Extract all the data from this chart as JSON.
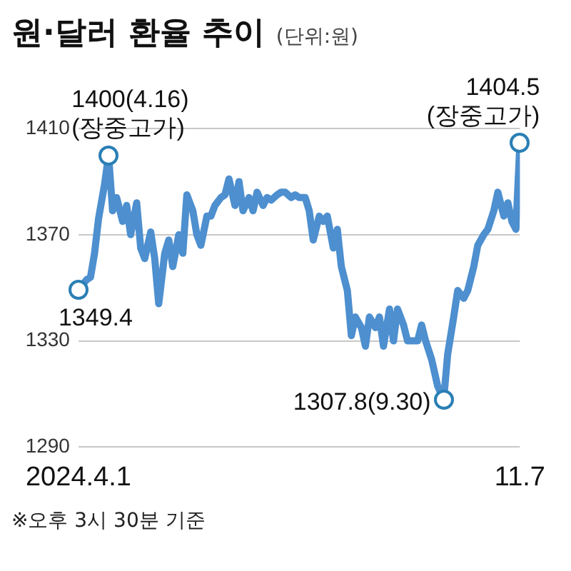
{
  "chart_data": {
    "type": "line",
    "title": "원·달러 환율 추이",
    "subtitle": "(단위:원)",
    "series": [
      {
        "color": "#4d8fcf",
        "x": [
          "2024-04-01",
          "2024-04-03",
          "2024-04-05",
          "2024-04-07",
          "2024-04-09",
          "2024-04-11",
          "2024-04-14",
          "2024-04-16",
          "2024-04-18",
          "2024-04-20",
          "2024-04-23",
          "2024-04-25",
          "2024-04-27",
          "2024-04-30",
          "2024-05-02",
          "2024-05-04",
          "2024-05-07",
          "2024-05-09",
          "2024-05-11",
          "2024-05-14",
          "2024-05-16",
          "2024-05-18",
          "2024-05-21",
          "2024-05-23",
          "2024-05-25",
          "2024-05-28",
          "2024-05-30",
          "2024-06-01",
          "2024-06-04",
          "2024-06-06",
          "2024-06-08",
          "2024-06-11",
          "2024-06-13",
          "2024-06-15",
          "2024-06-18",
          "2024-06-20",
          "2024-06-22",
          "2024-06-25",
          "2024-06-27",
          "2024-06-29",
          "2024-07-02",
          "2024-07-04",
          "2024-07-06",
          "2024-07-09",
          "2024-07-11",
          "2024-07-13",
          "2024-07-16",
          "2024-07-18",
          "2024-07-20",
          "2024-07-23",
          "2024-07-25",
          "2024-07-27",
          "2024-07-30",
          "2024-08-01",
          "2024-08-03",
          "2024-08-06",
          "2024-08-08",
          "2024-08-10",
          "2024-08-13",
          "2024-08-15",
          "2024-08-17",
          "2024-08-20",
          "2024-08-22",
          "2024-08-24",
          "2024-08-27",
          "2024-08-29",
          "2024-08-31",
          "2024-09-03",
          "2024-09-05",
          "2024-09-07",
          "2024-09-10",
          "2024-09-12",
          "2024-09-14",
          "2024-09-17",
          "2024-09-19",
          "2024-09-21",
          "2024-09-24",
          "2024-09-27",
          "2024-09-30",
          "2024-10-02",
          "2024-10-05",
          "2024-10-07",
          "2024-10-10",
          "2024-10-12",
          "2024-10-15",
          "2024-10-17",
          "2024-10-20",
          "2024-10-22",
          "2024-10-25",
          "2024-10-27",
          "2024-10-30",
          "2024-11-01",
          "2024-11-03",
          "2024-11-05",
          "2024-11-07"
        ],
        "values": [
          1349.4,
          1351,
          1353,
          1354,
          1363,
          1376,
          1389,
          1400,
          1379,
          1384,
          1375,
          1381,
          1370,
          1382,
          1365,
          1361,
          1371,
          1361,
          1344,
          1363,
          1368,
          1358,
          1370,
          1363,
          1385,
          1379,
          1370,
          1366,
          1377,
          1377,
          1381,
          1384,
          1385,
          1391,
          1381,
          1390,
          1379,
          1384,
          1379,
          1386,
          1381,
          1384,
          1383,
          1385,
          1386,
          1386,
          1384,
          1385,
          1384,
          1384,
          1379,
          1368,
          1377,
          1375,
          1377,
          1365,
          1372,
          1358,
          1349,
          1332,
          1339,
          1335,
          1328,
          1339,
          1335,
          1339,
          1328,
          1342,
          1330,
          1342,
          1336,
          1330,
          1330,
          1330,
          1336,
          1330,
          1323,
          1313,
          1307.8,
          1325,
          1339,
          1349,
          1346,
          1349,
          1358,
          1366,
          1370,
          1372,
          1379,
          1386,
          1377,
          1382,
          1375,
          1372,
          1404.5
        ]
      }
    ],
    "xlim": [
      "2024-04-01",
      "2024-11-07"
    ],
    "xticks": [
      {
        "value": "2024-04-01",
        "label": "2024.4.1"
      },
      {
        "value": "2024-11-07",
        "label": "11.7"
      }
    ],
    "ylim": [
      1290,
      1410
    ],
    "yticks": [
      1290,
      1330,
      1370,
      1410
    ],
    "grid": "y",
    "legend": false,
    "line_style": "solid",
    "annotations": [
      {
        "text": "1400(4.16)\n(장중고가)",
        "x": "2024-04-16",
        "y": 1400
      },
      {
        "text": "1349.4",
        "x": "2024-04-01",
        "y": 1349.4
      },
      {
        "text": "1307.8(9.30)",
        "x": "2024-09-30",
        "y": 1307.8
      },
      {
        "text": "1404.5\n(장중고가)",
        "x": "2024-11-07",
        "y": 1404.5
      },
      "※오후 3시 30분 기준"
    ]
  }
}
